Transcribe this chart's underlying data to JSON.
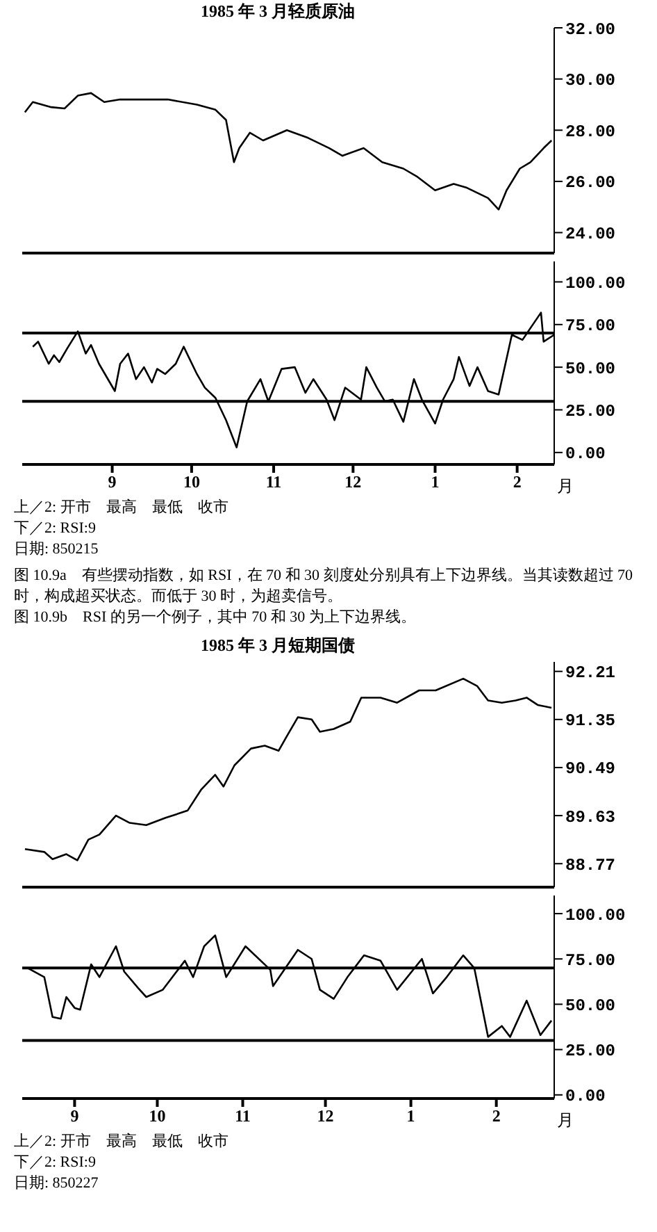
{
  "chart_data": [
    {
      "type": "line",
      "title": "1985 年 3 月轻质原油",
      "tick_labels": "y",
      "marker": "none",
      "line_style": "solid",
      "xlim": [
        "1984-07-29",
        "1985-02-15"
      ],
      "ylim": [
        23.2,
        32
      ],
      "yticks": [
        {
          "value": 24,
          "label": "24.00"
        },
        {
          "value": 26,
          "label": "26.00"
        },
        {
          "value": 28,
          "label": "28.00"
        },
        {
          "value": 30,
          "label": "30.00"
        },
        {
          "value": 32,
          "label": "32.00"
        }
      ],
      "x": [
        "1984-07-30",
        "1984-08-02",
        "1984-08-09",
        "1984-08-14",
        "1984-08-19",
        "1984-08-24",
        "1984-08-29",
        "1984-09-04",
        "1984-09-12",
        "1984-09-22",
        "1984-10-03",
        "1984-10-10",
        "1984-10-14",
        "1984-10-16",
        "1984-10-17",
        "1984-10-19",
        "1984-10-23",
        "1984-10-28",
        "1984-11-06",
        "1984-11-14",
        "1984-11-22",
        "1984-11-27",
        "1984-12-05",
        "1984-12-12",
        "1984-12-20",
        "1984-12-25",
        "1985-01-01",
        "1985-01-08",
        "1985-01-13",
        "1985-01-21",
        "1985-01-25",
        "1985-01-28",
        "1985-02-02",
        "1985-02-06",
        "1985-02-11",
        "1985-02-14"
      ],
      "series": [
        {
          "color": "#000000",
          "values": [
            28.7,
            29.1,
            28.9,
            28.85,
            29.35,
            29.45,
            29.1,
            29.2,
            29.2,
            29.2,
            29.0,
            28.8,
            28.4,
            27.3,
            26.75,
            27.3,
            27.9,
            27.6,
            28.0,
            27.7,
            27.3,
            27.0,
            27.3,
            26.75,
            26.5,
            26.2,
            25.65,
            25.9,
            25.75,
            25.35,
            24.9,
            25.65,
            26.5,
            26.75,
            27.3,
            27.6
          ]
        }
      ]
    },
    {
      "type": "line",
      "xlabel": "月",
      "marker": "none",
      "line_style": "solid",
      "xlim": [
        "1984-07-29",
        "1985-02-15"
      ],
      "xticks": [
        {
          "value": "1984-09",
          "label": "9"
        },
        {
          "value": "1984-10",
          "label": "10"
        },
        {
          "value": "1984-11",
          "label": "11"
        },
        {
          "value": "1984-12",
          "label": "12"
        },
        {
          "value": "1985-01",
          "label": "1"
        },
        {
          "value": "1985-02",
          "label": "2"
        }
      ],
      "ylim": [
        -7,
        112
      ],
      "yticks": [
        {
          "value": 0,
          "label": "0.00"
        },
        {
          "value": 25,
          "label": "25.00"
        },
        {
          "value": 50,
          "label": "50.00"
        },
        {
          "value": 75,
          "label": "75.00"
        },
        {
          "value": 100,
          "label": "100.00"
        }
      ],
      "ref_lines": [
        {
          "axis": "y",
          "value": 70,
          "color": "#000000"
        },
        {
          "axis": "y",
          "value": 30,
          "color": "#000000"
        }
      ],
      "x": [
        "1984-08-02",
        "1984-08-04",
        "1984-08-08",
        "1984-08-10",
        "1984-08-12",
        "1984-08-15",
        "1984-08-19",
        "1984-08-22",
        "1984-08-24",
        "1984-08-27",
        "1984-09-02",
        "1984-09-04",
        "1984-09-07",
        "1984-09-10",
        "1984-09-13",
        "1984-09-16",
        "1984-09-18",
        "1984-09-21",
        "1984-09-25",
        "1984-09-28",
        "1984-10-03",
        "1984-10-06",
        "1984-10-10",
        "1984-10-14",
        "1984-10-18",
        "1984-10-22",
        "1984-10-27",
        "1984-10-30",
        "1984-11-04",
        "1984-11-09",
        "1984-11-13",
        "1984-11-16",
        "1984-11-21",
        "1984-11-24",
        "1984-11-28",
        "1984-12-04",
        "1984-12-06",
        "1984-12-10",
        "1984-12-13",
        "1984-12-16",
        "1984-12-20",
        "1984-12-24",
        "1984-12-27",
        "1985-01-01",
        "1985-01-04",
        "1985-01-08",
        "1985-01-10",
        "1985-01-14",
        "1985-01-17",
        "1985-01-21",
        "1985-01-25",
        "1985-01-30",
        "1985-02-03",
        "1985-02-10",
        "1985-02-11",
        "1985-02-15"
      ],
      "series": [
        {
          "color": "#000000",
          "values": [
            62,
            65,
            52,
            57,
            53,
            61,
            71,
            58,
            63,
            52,
            36,
            52,
            58,
            43,
            50,
            41,
            49,
            46,
            52,
            62,
            46,
            38,
            32,
            19,
            3,
            30,
            43,
            30,
            49,
            50,
            35,
            43,
            31,
            19,
            38,
            31,
            50,
            38,
            30,
            31,
            18,
            43,
            31,
            17,
            31,
            43,
            56,
            39,
            50,
            36,
            34,
            69,
            66,
            82,
            65,
            69
          ]
        }
      ],
      "annotations": [
        "上／2: 开市　最高　最低　收市",
        "下／2: RSI:9",
        "日期: 850215",
        "图 10.9a　有些摆动指数，如 RSI，在 70 和 30 刻度处分别具有上下边界线。当其读数超过 70 时，构成超买状态。而低于 30 时，为超卖信号。",
        "图 10.9b　RSI 的另一个例子，其中 70 和 30 为上下边界线。"
      ]
    },
    {
      "type": "line",
      "title": "1985 年 3 月短期国债",
      "tick_labels": "y",
      "marker": "none",
      "line_style": "solid",
      "xlim": [
        "1984-08-13",
        "1985-02-22"
      ],
      "ylim": [
        88.35,
        92.38
      ],
      "yticks": [
        {
          "value": 88.77,
          "label": "88.77"
        },
        {
          "value": 89.63,
          "label": "89.63"
        },
        {
          "value": 90.49,
          "label": "90.49"
        },
        {
          "value": 91.35,
          "label": "91.35"
        },
        {
          "value": 92.21,
          "label": "92.21"
        }
      ],
      "x": [
        "1984-08-14",
        "1984-08-21",
        "1984-08-24",
        "1984-08-29",
        "1984-09-02",
        "1984-09-06",
        "1984-09-10",
        "1984-09-16",
        "1984-09-21",
        "1984-09-27",
        "1984-10-04",
        "1984-10-12",
        "1984-10-17",
        "1984-10-22",
        "1984-10-25",
        "1984-10-29",
        "1984-11-04",
        "1984-11-09",
        "1984-11-14",
        "1984-11-17",
        "1984-11-21",
        "1984-11-26",
        "1984-11-29",
        "1984-12-04",
        "1984-12-10",
        "1984-12-14",
        "1984-12-21",
        "1984-12-27",
        "1985-01-04",
        "1985-01-10",
        "1985-01-20",
        "1985-01-25",
        "1985-01-29",
        "1985-02-03",
        "1985-02-08",
        "1985-02-12",
        "1985-02-16",
        "1985-02-21"
      ],
      "series": [
        {
          "color": "#000000",
          "values": [
            89.03,
            88.98,
            88.85,
            88.94,
            88.83,
            89.2,
            89.29,
            89.63,
            89.5,
            89.46,
            89.59,
            89.72,
            90.1,
            90.36,
            90.15,
            90.53,
            90.83,
            90.88,
            90.79,
            91.05,
            91.39,
            91.35,
            91.13,
            91.18,
            91.31,
            91.74,
            91.74,
            91.65,
            91.87,
            91.87,
            92.08,
            91.95,
            91.69,
            91.65,
            91.69,
            91.74,
            91.61,
            91.56
          ]
        }
      ]
    },
    {
      "type": "line",
      "xlabel": "月",
      "marker": "none",
      "line_style": "solid",
      "xlim": [
        "1984-08-13",
        "1985-02-22"
      ],
      "xticks": [
        {
          "value": "1984-09",
          "label": "9"
        },
        {
          "value": "1984-10",
          "label": "10"
        },
        {
          "value": "1984-11",
          "label": "11"
        },
        {
          "value": "1984-12",
          "label": "12"
        },
        {
          "value": "1985-01",
          "label": "1"
        },
        {
          "value": "1985-02",
          "label": "2"
        }
      ],
      "ylim": [
        -2,
        110
      ],
      "yticks": [
        {
          "value": 0,
          "label": "0.00"
        },
        {
          "value": 25,
          "label": "25.00"
        },
        {
          "value": 50,
          "label": "50.00"
        },
        {
          "value": 75,
          "label": "75.00"
        },
        {
          "value": 100,
          "label": "100.00"
        }
      ],
      "ref_lines": [
        {
          "axis": "y",
          "value": 70,
          "color": "#000000"
        },
        {
          "axis": "y",
          "value": 30,
          "color": "#000000"
        }
      ],
      "x": [
        "1984-08-15",
        "1984-08-21",
        "1984-08-24",
        "1984-08-27",
        "1984-08-29",
        "1984-09-01",
        "1984-09-03",
        "1984-09-07",
        "1984-09-10",
        "1984-09-16",
        "1984-09-19",
        "1984-09-24",
        "1984-09-27",
        "1984-10-03",
        "1984-10-11",
        "1984-10-14",
        "1984-10-18",
        "1984-10-22",
        "1984-10-26",
        "1984-11-02",
        "1984-11-11",
        "1984-11-12",
        "1984-11-21",
        "1984-11-26",
        "1984-11-29",
        "1984-12-04",
        "1984-12-09",
        "1984-12-15",
        "1984-12-21",
        "1984-12-27",
        "1985-01-05",
        "1985-01-09",
        "1985-01-14",
        "1985-01-20",
        "1985-01-24",
        "1985-01-29",
        "1985-02-03",
        "1985-02-06",
        "1985-02-12",
        "1985-02-17",
        "1985-02-21"
      ],
      "series": [
        {
          "color": "#000000",
          "values": [
            70,
            65,
            43,
            42,
            54,
            48,
            47,
            72,
            65,
            82,
            68,
            59,
            54,
            58,
            74,
            65,
            82,
            88,
            65,
            82,
            69,
            60,
            80,
            75,
            58,
            53,
            65,
            77,
            74,
            58,
            75,
            56,
            65,
            77,
            70,
            32,
            38,
            32,
            52,
            33,
            41
          ]
        }
      ],
      "annotations": [
        "上／2: 开市　最高　最低　收市",
        "下／2: RSI:9",
        "日期: 850227"
      ]
    }
  ]
}
